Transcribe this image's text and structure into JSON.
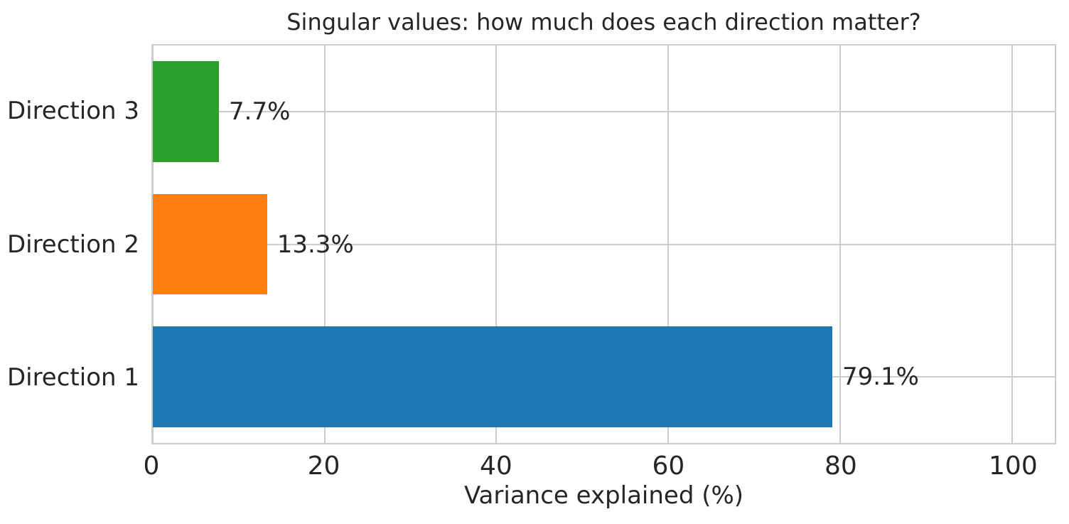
{
  "figure": {
    "background": "#ffffff"
  },
  "chart_data": {
    "type": "bar",
    "orientation": "horizontal",
    "title": "Singular values: how much does each direction matter?",
    "xlabel": "Variance explained (%)",
    "ylabel": "",
    "categories": [
      "Direction 3",
      "Direction 2",
      "Direction 1"
    ],
    "values": [
      7.7,
      13.3,
      79.1
    ],
    "bar_labels": [
      "7.7%",
      "13.3%",
      "79.1%"
    ],
    "bar_colors": [
      "#2ca02c",
      "#ff7f0e",
      "#1f77b4"
    ],
    "xticks": [
      0,
      20,
      40,
      60,
      80,
      100
    ],
    "xlim": [
      0,
      105
    ],
    "grid": true,
    "legend": false,
    "grid_color": "#cccccc",
    "spine_color": "#cccccc",
    "text_color": "#262626"
  }
}
